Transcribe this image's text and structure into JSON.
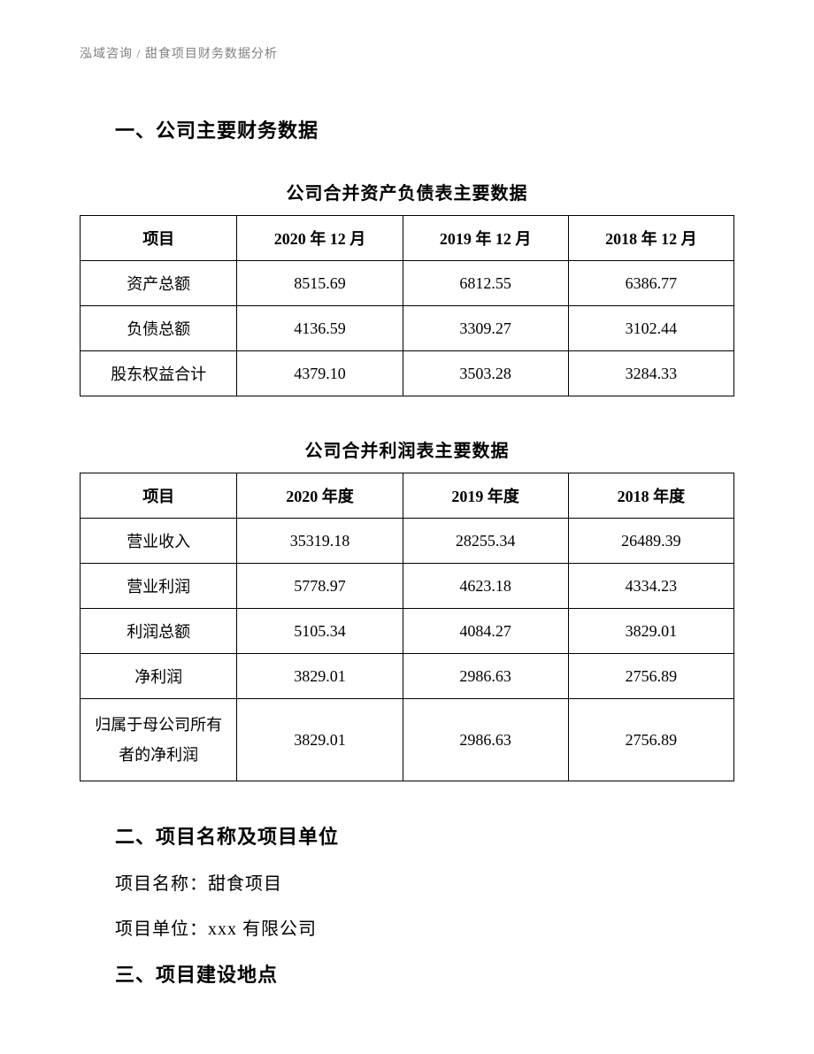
{
  "header": {
    "text": "泓域咨询 / 甜食项目财务数据分析"
  },
  "section1": {
    "heading": "一、公司主要财务数据"
  },
  "table1": {
    "title": "公司合并资产负债表主要数据",
    "headers": {
      "col0": "项目",
      "col1": "2020 年 12 月",
      "col2": "2019 年 12 月",
      "col3": "2018 年 12 月"
    },
    "rows": [
      {
        "label": "资产总额",
        "v1": "8515.69",
        "v2": "6812.55",
        "v3": "6386.77"
      },
      {
        "label": "负债总额",
        "v1": "4136.59",
        "v2": "3309.27",
        "v3": "3102.44"
      },
      {
        "label": "股东权益合计",
        "v1": "4379.10",
        "v2": "3503.28",
        "v3": "3284.33"
      }
    ]
  },
  "table2": {
    "title": "公司合并利润表主要数据",
    "headers": {
      "col0": "项目",
      "col1": "2020 年度",
      "col2": "2019 年度",
      "col3": "2018 年度"
    },
    "rows": [
      {
        "label": "营业收入",
        "v1": "35319.18",
        "v2": "28255.34",
        "v3": "26489.39"
      },
      {
        "label": "营业利润",
        "v1": "5778.97",
        "v2": "4623.18",
        "v3": "4334.23"
      },
      {
        "label": "利润总额",
        "v1": "5105.34",
        "v2": "4084.27",
        "v3": "3829.01"
      },
      {
        "label": "净利润",
        "v1": "3829.01",
        "v2": "2986.63",
        "v3": "2756.89"
      },
      {
        "label": "归属于母公司所有者的净利润",
        "v1": "3829.01",
        "v2": "2986.63",
        "v3": "2756.89"
      }
    ]
  },
  "section2": {
    "heading": "二、项目名称及项目单位",
    "line1": "项目名称：甜食项目",
    "line2": "项目单位：xxx 有限公司"
  },
  "section3": {
    "heading": "三、项目建设地点"
  },
  "style": {
    "text_color": "#000000",
    "header_color": "#808080",
    "background_color": "#ffffff",
    "border_color": "#000000",
    "heading_fontsize": 22,
    "body_fontsize": 20,
    "table_fontsize": 18,
    "header_fontsize": 14
  }
}
